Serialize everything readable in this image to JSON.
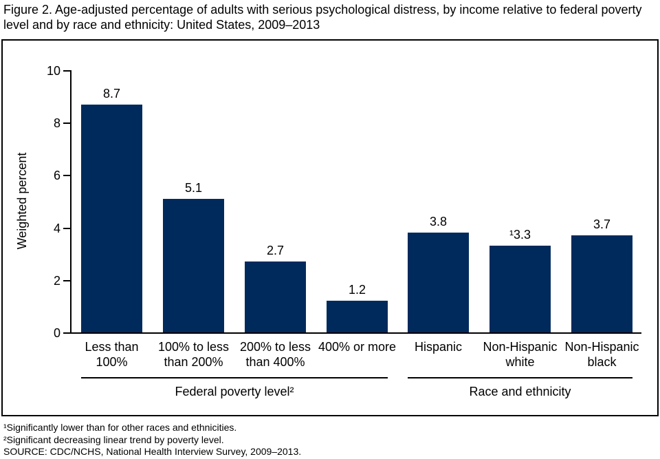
{
  "title": "Figure 2. Age-adjusted percentage of adults with serious psychological distress, by income relative to federal poverty\nlevel and by race and ethnicity: United States, 2009–2013",
  "chart_data": {
    "type": "bar",
    "title": "Figure 2. Age-adjusted percentage of adults with serious psychological distress, by income relative to federal poverty level and by race and ethnicity: United States, 2009–2013",
    "ylabel": "Weighted percent",
    "xlabel": "",
    "ylim": [
      0,
      10
    ],
    "yticks": [
      0,
      2,
      4,
      6,
      8,
      10
    ],
    "grid": false,
    "legend": "none",
    "bar_color": "#002a5c",
    "axis_color": "#000000",
    "categories": [
      "Less than 100%",
      "100% to less than 200%",
      "200% to less than 400%",
      "400% or more",
      "Hispanic",
      "Non-Hispanic white",
      "Non-Hispanic black"
    ],
    "values": [
      8.7,
      5.1,
      2.7,
      1.2,
      3.8,
      3.3,
      3.7
    ],
    "groups": [
      {
        "label": "Federal poverty level²",
        "bars": [
          {
            "category": "Less than\n100%",
            "value": 8.7,
            "value_label": "8.7"
          },
          {
            "category": "100% to less\nthan 200%",
            "value": 5.1,
            "value_label": "5.1"
          },
          {
            "category": "200% to less\nthan 400%",
            "value": 2.7,
            "value_label": "2.7"
          },
          {
            "category": "400% or more",
            "value": 1.2,
            "value_label": "1.2"
          }
        ]
      },
      {
        "label": "Race and ethnicity",
        "bars": [
          {
            "category": "Hispanic",
            "value": 3.8,
            "value_label": "3.8"
          },
          {
            "category": "Non-Hispanic\nwhite",
            "value": 3.3,
            "value_label": "¹3.3"
          },
          {
            "category": "Non-Hispanic\nblack",
            "value": 3.7,
            "value_label": "3.7"
          }
        ]
      }
    ]
  },
  "footnotes": [
    "¹Significantly lower than for other races and ethnicities.",
    "²Significant decreasing linear trend by poverty level.",
    "SOURCE: CDC/NCHS, National Health Interview Survey, 2009–2013."
  ]
}
